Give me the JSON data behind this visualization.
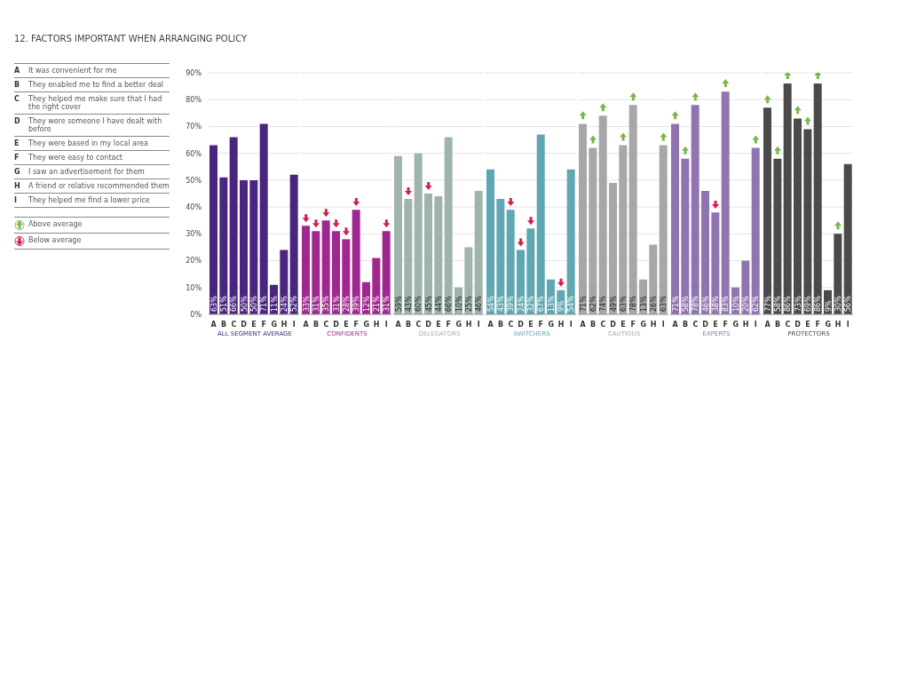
{
  "chart_data": [
    {
      "type": "other",
      "title": "12. FACTORS IMPORTANT WHEN ARRANGING POLICY",
      "categories": [
        "A",
        "B",
        "C",
        "D",
        "E",
        "F",
        "G",
        "H",
        "I"
      ],
      "annotations": [
        "It was convenient for me",
        "They enabled me to find a better deal",
        "They helped me make sure that I had the right cover",
        "They were someone I have dealt with before",
        "They were based in my local area",
        "They were easy to contact",
        "I saw an advertisement for them",
        "A friend or relative recommended them",
        "They helped me find a lower price",
        "Above average",
        "Below average"
      ]
    },
    {
      "type": "bar",
      "xlabel": "ALL SEGMENT AVERAGE",
      "categories": [
        "A",
        "B",
        "C",
        "D",
        "E",
        "F",
        "G",
        "H",
        "I"
      ],
      "ylim": [
        0,
        90
      ],
      "yticks": [
        {
          "value": 0,
          "label": "0%"
        },
        {
          "value": 10,
          "label": "10%"
        },
        {
          "value": 20,
          "label": "20%"
        },
        {
          "value": 30,
          "label": "30%"
        },
        {
          "value": 40,
          "label": "40%"
        },
        {
          "value": 50,
          "label": "50%"
        },
        {
          "value": 60,
          "label": "60%"
        },
        {
          "value": 70,
          "label": "70%"
        },
        {
          "value": 80,
          "label": "80%"
        },
        {
          "value": 90,
          "label": "90%"
        }
      ],
      "grid": "y",
      "series": [
        {
          "type": "bar",
          "color": "#4a2580",
          "values": [
            63,
            51,
            66,
            50,
            50,
            71,
            11,
            24,
            52
          ],
          "value_labels": [
            "63%",
            "51%",
            "66%",
            "50%",
            "50%",
            "71%",
            "11%",
            "24%",
            "52%"
          ]
        }
      ]
    },
    {
      "type": "bar",
      "xlabel": "CONFIDENTS",
      "categories": [
        "A",
        "B",
        "C",
        "D",
        "E",
        "F",
        "G",
        "H",
        "I"
      ],
      "ylim": [
        0,
        90
      ],
      "yticks": [
        0,
        10,
        20,
        30,
        40,
        50,
        60,
        70,
        80,
        90
      ],
      "tick_labels": "x",
      "grid": "y",
      "series": [
        {
          "type": "bar",
          "color": "#a0278f",
          "values": [
            33,
            31,
            35,
            31,
            28,
            39,
            12,
            21,
            31
          ],
          "value_labels": [
            "33%",
            "31%",
            "35%",
            "31%",
            "28%",
            "39%",
            "12%",
            "21%",
            "31%"
          ]
        },
        {
          "type": "scatter",
          "color": "#d2204a",
          "values": [
            36,
            34,
            38,
            34,
            31,
            42,
            null,
            null,
            34
          ]
        }
      ]
    },
    {
      "type": "bar",
      "xlabel": "DELEGATORS",
      "categories": [
        "A",
        "B",
        "C",
        "D",
        "E",
        "F",
        "G",
        "H",
        "I"
      ],
      "ylim": [
        0,
        90
      ],
      "yticks": [
        0,
        10,
        20,
        30,
        40,
        50,
        60,
        70,
        80,
        90
      ],
      "tick_labels": "x",
      "grid": "y",
      "series": [
        {
          "type": "bar",
          "color": "#9fb4aa",
          "values": [
            59,
            43,
            60,
            45,
            44,
            66,
            10,
            25,
            46
          ],
          "value_labels": [
            "59%",
            "43%",
            "60%",
            "45%",
            "44%",
            "66%",
            "10%",
            "25%",
            "46%"
          ]
        },
        {
          "type": "scatter",
          "color": "#d2204a",
          "values": [
            null,
            46,
            null,
            48,
            null,
            null,
            null,
            null,
            null
          ]
        }
      ]
    },
    {
      "type": "bar",
      "xlabel": "SWITCHERS",
      "categories": [
        "A",
        "B",
        "C",
        "D",
        "E",
        "F",
        "G",
        "H",
        "I"
      ],
      "ylim": [
        0,
        90
      ],
      "yticks": [
        0,
        10,
        20,
        30,
        40,
        50,
        60,
        70,
        80,
        90
      ],
      "tick_labels": "x",
      "grid": "y",
      "series": [
        {
          "type": "bar",
          "color": "#5fa7b2",
          "values": [
            54,
            43,
            39,
            24,
            32,
            67,
            13,
            9,
            54
          ],
          "value_labels": [
            "54%",
            "43%",
            "39%",
            "24%",
            "32%",
            "67%",
            "13%",
            "9%",
            "54%"
          ]
        },
        {
          "type": "scatter",
          "color": "#d2204a",
          "values": [
            null,
            null,
            42,
            27,
            35,
            null,
            null,
            12,
            null
          ]
        }
      ]
    },
    {
      "type": "bar",
      "xlabel": "CAUTIOUS",
      "categories": [
        "A",
        "B",
        "C",
        "D",
        "E",
        "F",
        "G",
        "H",
        "I"
      ],
      "ylim": [
        0,
        90
      ],
      "yticks": [
        0,
        10,
        20,
        30,
        40,
        50,
        60,
        70,
        80,
        90
      ],
      "tick_labels": "x",
      "grid": "y",
      "series": [
        {
          "type": "bar",
          "color": "#a7a7a9",
          "values": [
            71,
            62,
            74,
            49,
            63,
            78,
            13,
            26,
            63
          ],
          "value_labels": [
            "71%",
            "62%",
            "74%",
            "49%",
            "63%",
            "78%",
            "13%",
            "26%",
            "63%"
          ]
        },
        {
          "type": "scatter",
          "color": "#7ab648",
          "values": [
            74,
            65,
            77,
            null,
            66,
            81,
            null,
            null,
            66
          ]
        }
      ]
    },
    {
      "type": "bar",
      "xlabel": "EXPERTS",
      "categories": [
        "A",
        "B",
        "C",
        "D",
        "E",
        "F",
        "G",
        "H",
        "I"
      ],
      "ylim": [
        0,
        90
      ],
      "yticks": [
        0,
        10,
        20,
        30,
        40,
        50,
        60,
        70,
        80,
        90
      ],
      "tick_labels": "x",
      "grid": "y",
      "series": [
        {
          "type": "bar",
          "color": "#8f74b0",
          "values": [
            71,
            58,
            78,
            46,
            38,
            83,
            10,
            20,
            62
          ],
          "value_labels": [
            "71%",
            "58%",
            "78%",
            "46%",
            "38%",
            "83%",
            "10%",
            "20%",
            "62%"
          ]
        },
        {
          "type": "scatter",
          "color": "#7ab648",
          "values": [
            74,
            61,
            81,
            null,
            null,
            86,
            null,
            null,
            65
          ]
        },
        {
          "type": "scatter",
          "color": "#d2204a",
          "values": [
            null,
            null,
            null,
            null,
            41,
            null,
            null,
            null,
            null
          ]
        }
      ]
    },
    {
      "type": "bar",
      "xlabel": "PROTECTORS",
      "categories": [
        "A",
        "B",
        "C",
        "D",
        "E",
        "F",
        "G",
        "H",
        "I"
      ],
      "ylim": [
        0,
        90
      ],
      "yticks": [
        0,
        10,
        20,
        30,
        40,
        50,
        60,
        70,
        80,
        90
      ],
      "tick_labels": "x",
      "grid": "y",
      "series": [
        {
          "type": "bar",
          "color": "#4a4a4a",
          "values": [
            77,
            58,
            86,
            73,
            69,
            86,
            9,
            30,
            56
          ],
          "value_labels": [
            "77%",
            "58%",
            "86%",
            "73%",
            "69%",
            "86%",
            "9%",
            "30%",
            "56%"
          ]
        },
        {
          "type": "scatter",
          "color": "#7ab648",
          "values": [
            80,
            61,
            89,
            76,
            72,
            89,
            null,
            33,
            null
          ]
        }
      ]
    }
  ]
}
